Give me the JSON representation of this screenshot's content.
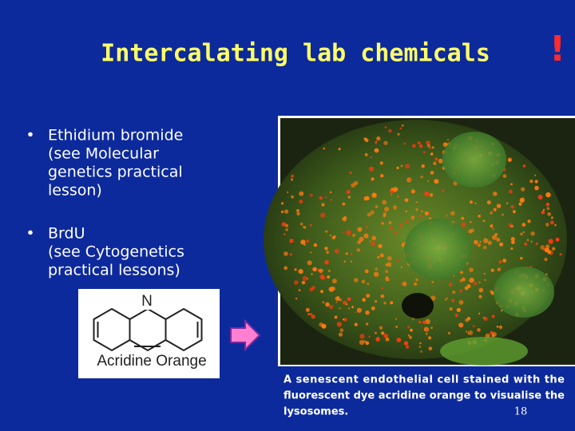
{
  "slide": {
    "title": "Intercalating lab chemicals",
    "alert": "!",
    "bullets": [
      {
        "marker": "•",
        "lines": [
          "Ethidium bromide",
          "(see Molecular",
          "genetics practical",
          "lesson)"
        ]
      },
      {
        "marker": "•",
        "lines": [
          "BrdU",
          "(see Cytogenetics",
          "practical lessons)"
        ]
      }
    ],
    "structure": {
      "atom": "N",
      "label": "Acridine Orange"
    },
    "caption": [
      "A senescent endothelial cell stained with the",
      "fluorescent dye acridine orange to visualise the",
      "lysosomes."
    ],
    "page_number": "18"
  }
}
